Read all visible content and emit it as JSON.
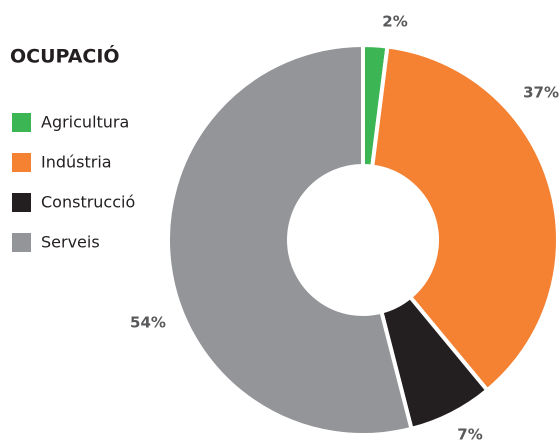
{
  "chart_data": {
    "type": "donut",
    "title": "OCUPACIÓ",
    "categories": [
      "Agricultura",
      "Indústria",
      "Construcció",
      "Serveis"
    ],
    "values": [
      2,
      37,
      7,
      54
    ],
    "value_labels": [
      "2%",
      "37%",
      "7%",
      "54%"
    ],
    "colors": [
      "#3cb554",
      "#f58233",
      "#231f20",
      "#939598"
    ]
  }
}
